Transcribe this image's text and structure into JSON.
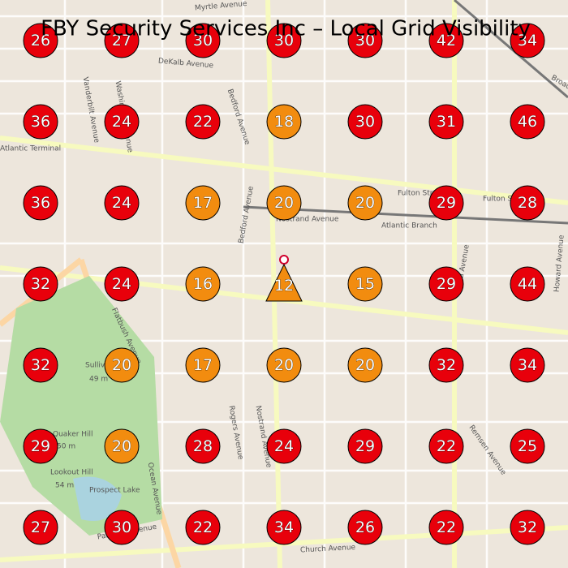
{
  "header": {
    "title": "FBY Security Services Inc – Local Grid Visibility"
  },
  "grid": {
    "rows": [
      [
        {
          "rank": 26,
          "color": "#e8000b"
        },
        {
          "rank": 27,
          "color": "#e8000b"
        },
        {
          "rank": 30,
          "color": "#e8000b"
        },
        {
          "rank": 30,
          "color": "#e8000b"
        },
        {
          "rank": 30,
          "color": "#e8000b"
        },
        {
          "rank": 42,
          "color": "#e8000b"
        },
        {
          "rank": 34,
          "color": "#e8000b"
        }
      ],
      [
        {
          "rank": 36,
          "color": "#e8000b"
        },
        {
          "rank": 24,
          "color": "#e8000b"
        },
        {
          "rank": 22,
          "color": "#e8000b"
        },
        {
          "rank": 18,
          "color": "#f28c0f"
        },
        {
          "rank": 30,
          "color": "#e8000b"
        },
        {
          "rank": 31,
          "color": "#e8000b"
        },
        {
          "rank": 46,
          "color": "#e8000b"
        }
      ],
      [
        {
          "rank": 36,
          "color": "#e8000b"
        },
        {
          "rank": 24,
          "color": "#e8000b"
        },
        {
          "rank": 17,
          "color": "#f28c0f"
        },
        {
          "rank": 20,
          "color": "#f28c0f"
        },
        {
          "rank": 20,
          "color": "#f28c0f"
        },
        {
          "rank": 29,
          "color": "#e8000b"
        },
        {
          "rank": 28,
          "color": "#e8000b"
        }
      ],
      [
        {
          "rank": 32,
          "color": "#e8000b"
        },
        {
          "rank": 24,
          "color": "#e8000b"
        },
        {
          "rank": 16,
          "color": "#f28c0f"
        },
        {
          "rank": 12,
          "color": "#f28c0f",
          "shape": "triangle"
        },
        {
          "rank": 15,
          "color": "#f28c0f"
        },
        {
          "rank": 29,
          "color": "#e8000b"
        },
        {
          "rank": 44,
          "color": "#e8000b"
        }
      ],
      [
        {
          "rank": 32,
          "color": "#e8000b"
        },
        {
          "rank": 20,
          "color": "#f28c0f"
        },
        {
          "rank": 17,
          "color": "#f28c0f"
        },
        {
          "rank": 20,
          "color": "#f28c0f"
        },
        {
          "rank": 20,
          "color": "#f28c0f"
        },
        {
          "rank": 32,
          "color": "#e8000b"
        },
        {
          "rank": 34,
          "color": "#e8000b"
        }
      ],
      [
        {
          "rank": 29,
          "color": "#e8000b"
        },
        {
          "rank": 20,
          "color": "#f28c0f"
        },
        {
          "rank": 28,
          "color": "#e8000b"
        },
        {
          "rank": 24,
          "color": "#e8000b"
        },
        {
          "rank": 29,
          "color": "#e8000b"
        },
        {
          "rank": 22,
          "color": "#e8000b"
        },
        {
          "rank": 25,
          "color": "#e8000b"
        }
      ],
      [
        {
          "rank": 27,
          "color": "#e8000b"
        },
        {
          "rank": 30,
          "color": "#e8000b"
        },
        {
          "rank": 22,
          "color": "#e8000b"
        },
        {
          "rank": 34,
          "color": "#e8000b"
        },
        {
          "rank": 26,
          "color": "#e8000b"
        },
        {
          "rank": 22,
          "color": "#e8000b"
        },
        {
          "rank": 32,
          "color": "#e8000b"
        }
      ]
    ]
  },
  "map": {
    "labels": [
      "Atlantic Terminal",
      "Fulton Street",
      "Fulton Street",
      "Atlantic Branch",
      "Nostrand Avenue",
      "Bedford Avenue",
      "Bedford Avenue",
      "Rogers Avenue",
      "Nostrand Avenue",
      "Flatbush Avenue",
      "Sullivan Hill",
      "49 m",
      "Quaker Hill",
      "50 m",
      "Lookout Hill",
      "54 m",
      "Prospect Lake",
      "Ocean Avenue",
      "Church Avenue",
      "Remsen Avenue",
      "Utica Avenue",
      "Broadway",
      "Myrtle Avenue",
      "DeKalb Avenue",
      "Howard Avenue",
      "Vanderbilt Avenue",
      "Washington Avenue",
      "Parkside Avenue"
    ]
  }
}
